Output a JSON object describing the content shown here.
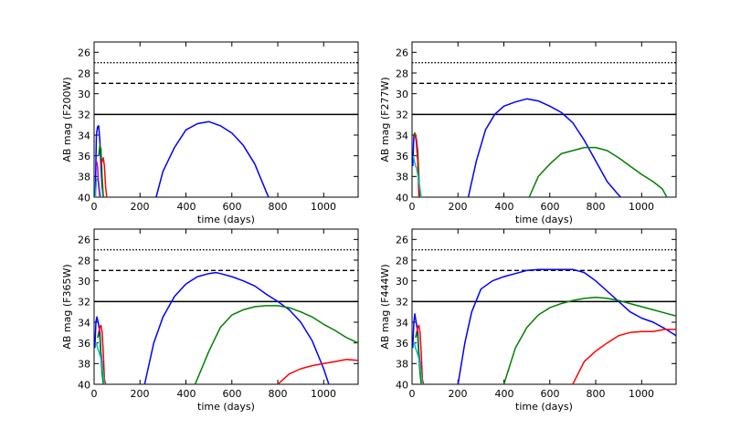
{
  "chart_data": [
    {
      "type": "line",
      "ylabel": "AB mag (F200W)",
      "xlabel": "time (days)",
      "xlim": [
        0,
        1150
      ],
      "ylim": [
        40,
        25
      ],
      "inverted_y": true,
      "xticks": [
        "0",
        "200",
        "400",
        "600",
        "800",
        "1000"
      ],
      "yticks": [
        "26",
        "28",
        "30",
        "32",
        "34",
        "36",
        "38",
        "40"
      ],
      "limits": [
        {
          "name": "dotted limit",
          "y": 27,
          "style": "dotted",
          "color": "#000000"
        },
        {
          "name": "dashed limit",
          "y": 29,
          "style": "dashed",
          "color": "#000000"
        },
        {
          "name": "solid limit",
          "y": 32,
          "style": "solid",
          "color": "#000000"
        }
      ],
      "series": [
        {
          "name": "blue early",
          "color": "#0000ff",
          "x": [
            5,
            10,
            15,
            20,
            25,
            30,
            35,
            40,
            45
          ],
          "y": [
            40,
            34,
            33.2,
            33.1,
            34.5,
            37,
            39,
            40,
            40
          ]
        },
        {
          "name": "green early",
          "color": "#008000",
          "x": [
            20,
            25,
            30,
            35,
            40
          ],
          "y": [
            36,
            35,
            35.3,
            38,
            40
          ]
        },
        {
          "name": "red early",
          "color": "#ff0000",
          "x": [
            30,
            35,
            40,
            45,
            50,
            55
          ],
          "y": [
            37,
            36.5,
            36.2,
            37,
            39,
            40
          ]
        },
        {
          "name": "cyan early",
          "color": "#00bfbf",
          "x": [
            5,
            10,
            15,
            20,
            25,
            30,
            35
          ],
          "y": [
            40,
            38.5,
            38.2,
            38.5,
            39.5,
            40,
            40
          ]
        },
        {
          "name": "magenta early",
          "color": "#bf00bf",
          "x": [
            10,
            15,
            20,
            25,
            30
          ],
          "y": [
            36.5,
            37,
            39,
            40,
            40
          ]
        },
        {
          "name": "blue main",
          "color": "#0000ff",
          "x": [
            270,
            300,
            350,
            400,
            450,
            500,
            550,
            600,
            650,
            700,
            750,
            770
          ],
          "y": [
            40,
            37.5,
            35.2,
            33.5,
            32.9,
            32.7,
            33.1,
            33.8,
            35,
            36.8,
            39.5,
            40.5
          ]
        }
      ]
    },
    {
      "type": "line",
      "ylabel": "AB mag (F277W)",
      "xlabel": "time (days)",
      "xlim": [
        0,
        1150
      ],
      "ylim": [
        40,
        25
      ],
      "inverted_y": true,
      "xticks": [
        "0",
        "200",
        "400",
        "600",
        "800",
        "1000"
      ],
      "yticks": [
        "26",
        "28",
        "30",
        "32",
        "34",
        "36",
        "38",
        "40"
      ],
      "limits": [
        {
          "name": "dotted limit",
          "y": 27,
          "style": "dotted",
          "color": "#000000"
        },
        {
          "name": "dashed limit",
          "y": 29,
          "style": "dashed",
          "color": "#000000"
        },
        {
          "name": "solid limit",
          "y": 32,
          "style": "solid",
          "color": "#000000"
        }
      ],
      "series": [
        {
          "name": "blue early",
          "color": "#0000ff",
          "x": [
            3,
            8,
            12,
            18,
            25,
            30,
            35
          ],
          "y": [
            37,
            34,
            33.8,
            34.5,
            36.5,
            39,
            40
          ]
        },
        {
          "name": "green early",
          "color": "#008000",
          "x": [
            8,
            12,
            18,
            25,
            30,
            35
          ],
          "y": [
            34.2,
            33.8,
            34.3,
            35.5,
            38,
            40
          ]
        },
        {
          "name": "red early",
          "color": "#ff0000",
          "x": [
            10,
            15,
            20,
            25,
            30
          ],
          "y": [
            34.2,
            34,
            34.5,
            36.5,
            40
          ]
        },
        {
          "name": "cyan early",
          "color": "#00bfbf",
          "x": [
            5,
            10,
            15,
            20,
            30,
            40
          ],
          "y": [
            36,
            36.5,
            37,
            37.2,
            38.5,
            40
          ]
        },
        {
          "name": "blue main",
          "color": "#0000ff",
          "x": [
            245,
            280,
            320,
            360,
            400,
            450,
            500,
            550,
            600,
            650,
            700,
            750,
            800,
            850,
            900,
            930
          ],
          "y": [
            40,
            36.5,
            33.5,
            32,
            31.2,
            30.8,
            30.5,
            30.7,
            31.2,
            31.8,
            32.8,
            34.5,
            36.5,
            38.5,
            39.8,
            40.5
          ]
        },
        {
          "name": "green main",
          "color": "#008000",
          "x": [
            510,
            550,
            600,
            650,
            700,
            750,
            800,
            850,
            900,
            950,
            1000,
            1050,
            1090,
            1110
          ],
          "y": [
            40,
            38,
            36.8,
            35.8,
            35.5,
            35.2,
            35.2,
            35.5,
            36.2,
            37,
            37.8,
            38.5,
            39.2,
            40
          ]
        }
      ]
    },
    {
      "type": "line",
      "ylabel": "AB mag (F365W)",
      "xlabel": "time (days)",
      "xlim": [
        0,
        1150
      ],
      "ylim": [
        40,
        25
      ],
      "inverted_y": true,
      "xticks": [
        "0",
        "200",
        "400",
        "600",
        "800",
        "1000"
      ],
      "yticks": [
        "26",
        "28",
        "30",
        "32",
        "34",
        "36",
        "38",
        "40"
      ],
      "limits": [
        {
          "name": "dotted limit",
          "y": 27,
          "style": "dotted",
          "color": "#000000"
        },
        {
          "name": "dashed limit",
          "y": 29,
          "style": "dashed",
          "color": "#000000"
        },
        {
          "name": "solid limit",
          "y": 32,
          "style": "solid",
          "color": "#000000"
        }
      ],
      "series": [
        {
          "name": "blue early",
          "color": "#0000ff",
          "x": [
            3,
            8,
            12,
            18,
            25,
            30,
            40,
            45
          ],
          "y": [
            36.5,
            34,
            33.5,
            34,
            35,
            37,
            39,
            40
          ]
        },
        {
          "name": "green early",
          "color": "#008000",
          "x": [
            15,
            20,
            25,
            30,
            35,
            40
          ],
          "y": [
            35.5,
            35,
            35.5,
            37.5,
            39,
            40
          ]
        },
        {
          "name": "red early",
          "color": "#ff0000",
          "x": [
            20,
            25,
            30,
            35,
            40,
            45,
            50
          ],
          "y": [
            35,
            34.5,
            34.3,
            35,
            37,
            39.5,
            40
          ]
        },
        {
          "name": "cyan early",
          "color": "#00bfbf",
          "x": [
            5,
            10,
            15,
            20,
            30,
            40,
            45
          ],
          "y": [
            36,
            36,
            36.5,
            36.8,
            37.5,
            39,
            40
          ]
        },
        {
          "name": "blue main",
          "color": "#0000ff",
          "x": [
            220,
            260,
            300,
            350,
            400,
            450,
            500,
            530,
            550,
            600,
            650,
            700,
            750,
            800,
            850,
            900,
            950,
            1000,
            1030
          ],
          "y": [
            40,
            36,
            33.5,
            31.5,
            30.3,
            29.6,
            29.3,
            29.2,
            29.3,
            29.6,
            30,
            30.5,
            31.3,
            32,
            32.8,
            34,
            35.8,
            38.5,
            40.5
          ]
        },
        {
          "name": "green main",
          "color": "#008000",
          "x": [
            440,
            500,
            550,
            600,
            650,
            700,
            750,
            800,
            850,
            900,
            950,
            1000,
            1050,
            1100,
            1150
          ],
          "y": [
            40,
            36.8,
            34.5,
            33.3,
            32.8,
            32.5,
            32.4,
            32.4,
            32.6,
            33,
            33.5,
            34.2,
            34.8,
            35.5,
            36
          ]
        },
        {
          "name": "red main",
          "color": "#ff0000",
          "x": [
            800,
            850,
            900,
            950,
            1000,
            1050,
            1100,
            1150
          ],
          "y": [
            40,
            39,
            38.5,
            38.2,
            38,
            37.8,
            37.6,
            37.7
          ]
        }
      ]
    },
    {
      "type": "line",
      "ylabel": "AB mag (F444W)",
      "xlabel": "time (days)",
      "xlim": [
        0,
        1150
      ],
      "ylim": [
        40,
        25
      ],
      "inverted_y": true,
      "xticks": [
        "0",
        "200",
        "400",
        "600",
        "800",
        "1000"
      ],
      "yticks": [
        "26",
        "28",
        "30",
        "32",
        "34",
        "36",
        "38",
        "40"
      ],
      "limits": [
        {
          "name": "dotted limit",
          "y": 27,
          "style": "dotted",
          "color": "#000000"
        },
        {
          "name": "dashed limit",
          "y": 29,
          "style": "dashed",
          "color": "#000000"
        },
        {
          "name": "solid limit",
          "y": 32,
          "style": "solid",
          "color": "#000000"
        }
      ],
      "series": [
        {
          "name": "blue early",
          "color": "#0000ff",
          "x": [
            3,
            8,
            12,
            18,
            25,
            30,
            40,
            45
          ],
          "y": [
            36.5,
            34,
            33.2,
            34,
            35,
            37,
            39,
            40
          ]
        },
        {
          "name": "green early",
          "color": "#008000",
          "x": [
            15,
            20,
            25,
            30,
            35,
            40
          ],
          "y": [
            35.5,
            35,
            35.5,
            37.5,
            39,
            40
          ]
        },
        {
          "name": "red early",
          "color": "#ff0000",
          "x": [
            20,
            25,
            30,
            35,
            40,
            45,
            50
          ],
          "y": [
            35,
            34.5,
            34.3,
            35,
            37,
            39.5,
            40
          ]
        },
        {
          "name": "cyan early",
          "color": "#00bfbf",
          "x": [
            5,
            10,
            15,
            20,
            30,
            40,
            45
          ],
          "y": [
            36,
            36,
            36.5,
            36.8,
            37.5,
            39,
            40
          ]
        },
        {
          "name": "blue main",
          "color": "#0000ff",
          "x": [
            200,
            230,
            260,
            300,
            350,
            400,
            450,
            500,
            550,
            600,
            650,
            700,
            750,
            800,
            850,
            900,
            950,
            1000,
            1050,
            1100,
            1150
          ],
          "y": [
            40,
            36,
            33,
            30.8,
            30,
            29.6,
            29.3,
            29,
            28.9,
            28.9,
            28.9,
            28.9,
            29.2,
            30,
            31,
            32,
            33,
            33.6,
            34,
            34.6,
            35.3
          ]
        },
        {
          "name": "green main",
          "color": "#008000",
          "x": [
            400,
            450,
            500,
            550,
            600,
            650,
            700,
            750,
            800,
            850,
            900,
            950,
            1000,
            1050,
            1100,
            1150
          ],
          "y": [
            40,
            36.5,
            34.5,
            33.3,
            32.6,
            32.2,
            31.9,
            31.7,
            31.6,
            31.7,
            31.9,
            32.2,
            32.5,
            32.8,
            33.1,
            33.4
          ]
        },
        {
          "name": "red main",
          "color": "#ff0000",
          "x": [
            700,
            750,
            800,
            850,
            900,
            950,
            1000,
            1050,
            1100,
            1150
          ],
          "y": [
            40,
            37.8,
            36.8,
            36,
            35.3,
            35,
            34.9,
            34.9,
            34.7,
            34.7
          ]
        }
      ]
    }
  ]
}
